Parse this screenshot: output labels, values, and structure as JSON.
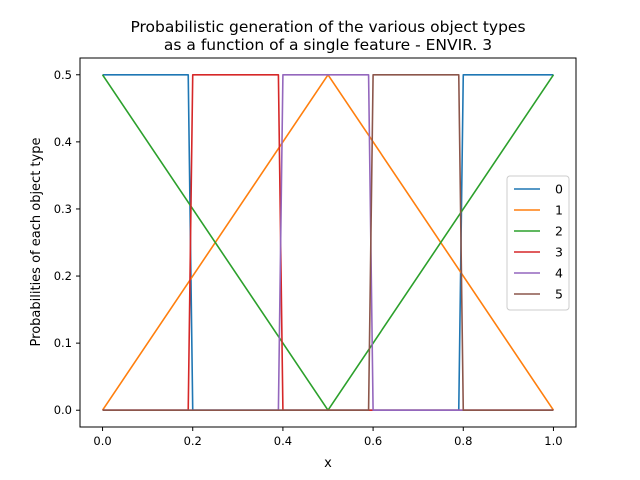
{
  "chart_data": {
    "type": "line",
    "title_line1": "Probabilistic generation of the various object types",
    "title_line2": "as a function of a single feature - ENVIR. 3",
    "xlabel": "x",
    "ylabel": "Probabilities of each object type",
    "xlim": [
      -0.05,
      1.05
    ],
    "ylim": [
      -0.025,
      0.525
    ],
    "xticks": [
      0.0,
      0.2,
      0.4,
      0.6,
      0.8,
      1.0
    ],
    "xtick_labels": [
      "0.0",
      "0.2",
      "0.4",
      "0.6",
      "0.8",
      "1.0"
    ],
    "yticks": [
      0.0,
      0.1,
      0.2,
      0.3,
      0.4,
      0.5
    ],
    "ytick_labels": [
      "0.0",
      "0.1",
      "0.2",
      "0.3",
      "0.4",
      "0.5"
    ],
    "grid": false,
    "legend_position": "center-right",
    "series": [
      {
        "name": "0",
        "color": "#1f77b4",
        "x": [
          0.0,
          0.19,
          0.2,
          0.79,
          0.8,
          1.0
        ],
        "y": [
          0.5,
          0.5,
          0.0,
          0.0,
          0.5,
          0.5
        ]
      },
      {
        "name": "1",
        "color": "#ff7f0e",
        "x": [
          0.0,
          0.5,
          1.0
        ],
        "y": [
          0.0,
          0.5,
          0.0
        ]
      },
      {
        "name": "2",
        "color": "#2ca02c",
        "x": [
          0.0,
          0.5,
          1.0
        ],
        "y": [
          0.5,
          0.0,
          0.5
        ]
      },
      {
        "name": "3",
        "color": "#d62728",
        "x": [
          0.0,
          0.19,
          0.2,
          0.39,
          0.4,
          1.0
        ],
        "y": [
          0.0,
          0.0,
          0.5,
          0.5,
          0.0,
          0.0
        ]
      },
      {
        "name": "4",
        "color": "#9467bd",
        "x": [
          0.0,
          0.39,
          0.4,
          0.59,
          0.6,
          1.0
        ],
        "y": [
          0.0,
          0.0,
          0.5,
          0.5,
          0.0,
          0.0
        ]
      },
      {
        "name": "5",
        "color": "#8c564b",
        "x": [
          0.0,
          0.59,
          0.6,
          0.79,
          0.8,
          1.0
        ],
        "y": [
          0.0,
          0.0,
          0.5,
          0.5,
          0.0,
          0.0
        ]
      }
    ]
  }
}
